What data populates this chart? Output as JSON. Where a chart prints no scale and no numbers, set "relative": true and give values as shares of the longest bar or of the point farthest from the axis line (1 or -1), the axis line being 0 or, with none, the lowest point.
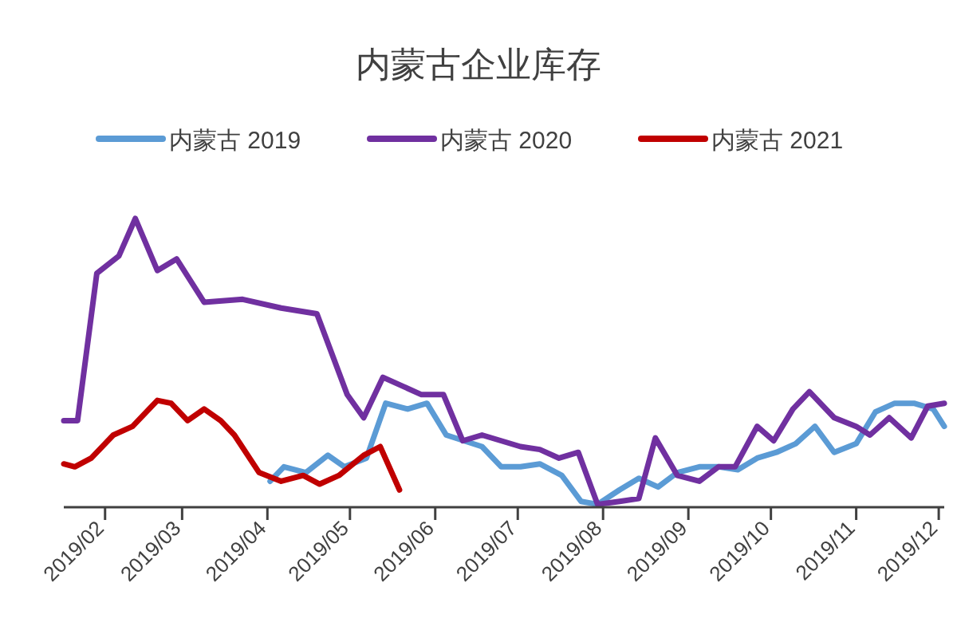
{
  "chart_data": {
    "type": "line",
    "title": "内蒙古企业库存",
    "relative": true,
    "legend": "top",
    "marker": "none",
    "line_style": "solid",
    "xlim": [
      "2019-01-17",
      "2019-12-03"
    ],
    "xticks": [
      {
        "value": "2019-02",
        "label": "2019/02"
      },
      {
        "value": "2019-03",
        "label": "2019/03"
      },
      {
        "value": "2019-04",
        "label": "2019/04"
      },
      {
        "value": "2019-05",
        "label": "2019/05"
      },
      {
        "value": "2019-06",
        "label": "2019/06"
      },
      {
        "value": "2019-07",
        "label": "2019/07"
      },
      {
        "value": "2019-08",
        "label": "2019/08"
      },
      {
        "value": "2019-09",
        "label": "2019/09"
      },
      {
        "value": "2019-10",
        "label": "2019/10"
      },
      {
        "value": "2019-11",
        "label": "2019/11"
      },
      {
        "value": "2019-12",
        "label": "2019/12"
      }
    ],
    "series": [
      {
        "name": "内蒙古 2019",
        "color": "#5b9bd5",
        "x": [
          "2019-04-02",
          "2019-04-07",
          "2019-04-15",
          "2019-04-23",
          "2019-04-29",
          "2019-05-07",
          "2019-05-14",
          "2019-05-22",
          "2019-05-29",
          "2019-06-05",
          "2019-06-18",
          "2019-06-25",
          "2019-07-02",
          "2019-07-09",
          "2019-07-17",
          "2019-07-24",
          "2019-07-30",
          "2019-08-07",
          "2019-08-14",
          "2019-08-21",
          "2019-08-28",
          "2019-09-05",
          "2019-09-12",
          "2019-09-19",
          "2019-09-26",
          "2019-10-03",
          "2019-10-10",
          "2019-10-17",
          "2019-10-24",
          "2019-11-01",
          "2019-11-08",
          "2019-11-15",
          "2019-11-22",
          "2019-11-29",
          "2019-12-03"
        ],
        "values": [
          0.09,
          0.14,
          0.12,
          0.18,
          0.14,
          0.17,
          0.36,
          0.34,
          0.36,
          0.25,
          0.21,
          0.14,
          0.14,
          0.15,
          0.11,
          0.02,
          0.01,
          0.06,
          0.1,
          0.07,
          0.12,
          0.14,
          0.14,
          0.13,
          0.17,
          0.19,
          0.22,
          0.28,
          0.19,
          0.22,
          0.33,
          0.36,
          0.36,
          0.34,
          0.28
        ]
      },
      {
        "name": "内蒙古 2020",
        "color": "#7030a0",
        "x": [
          "2019-01-17",
          "2019-01-22",
          "2019-01-29",
          "2019-02-06",
          "2019-02-12",
          "2019-02-20",
          "2019-02-27",
          "2019-03-09",
          "2019-03-23",
          "2019-04-06",
          "2019-04-19",
          "2019-04-30",
          "2019-05-06",
          "2019-05-13",
          "2019-05-27",
          "2019-06-04",
          "2019-06-11",
          "2019-06-18",
          "2019-06-25",
          "2019-07-02",
          "2019-07-09",
          "2019-07-16",
          "2019-07-23",
          "2019-07-30",
          "2019-08-07",
          "2019-08-14",
          "2019-08-20",
          "2019-08-28",
          "2019-09-05",
          "2019-09-12",
          "2019-09-18",
          "2019-09-26",
          "2019-10-02",
          "2019-10-09",
          "2019-10-15",
          "2019-10-24",
          "2019-11-01",
          "2019-11-06",
          "2019-11-13",
          "2019-11-21",
          "2019-11-27",
          "2019-12-03"
        ],
        "values": [
          0.3,
          0.3,
          0.81,
          0.87,
          1.0,
          0.82,
          0.86,
          0.71,
          0.72,
          0.69,
          0.67,
          0.39,
          0.31,
          0.45,
          0.39,
          0.39,
          0.23,
          0.25,
          0.23,
          0.21,
          0.2,
          0.17,
          0.19,
          0.01,
          0.02,
          0.03,
          0.24,
          0.11,
          0.09,
          0.14,
          0.14,
          0.28,
          0.23,
          0.34,
          0.4,
          0.31,
          0.28,
          0.25,
          0.31,
          0.24,
          0.35,
          0.36
        ]
      },
      {
        "name": "内蒙古 2021",
        "color": "#c00000",
        "x": [
          "2019-01-17",
          "2019-01-21",
          "2019-01-27",
          "2019-02-04",
          "2019-02-11",
          "2019-02-20",
          "2019-02-25",
          "2019-03-03",
          "2019-03-09",
          "2019-03-15",
          "2019-03-20",
          "2019-03-29",
          "2019-04-06",
          "2019-04-14",
          "2019-04-20",
          "2019-04-27",
          "2019-05-06",
          "2019-05-12",
          "2019-05-19"
        ],
        "values": [
          0.15,
          0.14,
          0.17,
          0.25,
          0.28,
          0.37,
          0.36,
          0.3,
          0.34,
          0.3,
          0.25,
          0.12,
          0.09,
          0.11,
          0.08,
          0.11,
          0.18,
          0.21,
          0.06
        ]
      }
    ]
  }
}
